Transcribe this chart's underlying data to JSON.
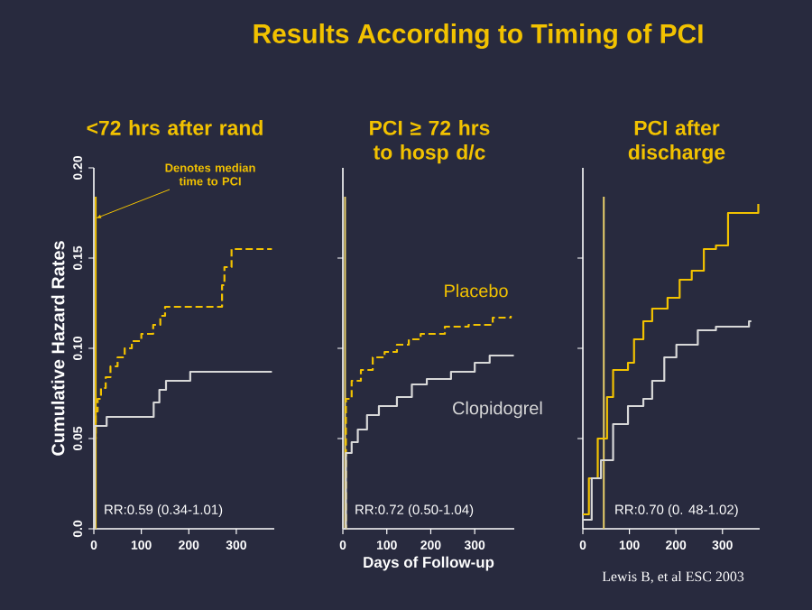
{
  "chart_data": [
    {
      "type": "step",
      "title": "<72 hrs after rand",
      "ylabel": "Cumulative Hazard Rates",
      "annotations": [
        "Results According to Timing of PCI",
        "RR:0.59 (0.34-1.01)"
      ],
      "xlim": [
        0,
        380
      ],
      "ylim": [
        0,
        0.2
      ],
      "xticks": [
        0,
        100,
        200,
        300
      ],
      "yticks": [
        {
          "value": 0,
          "label": "0.0"
        },
        0.05,
        {
          "value": 0.1,
          "label": "0.10"
        },
        0.15,
        {
          "value": 0.2,
          "label": "0.20"
        }
      ],
      "ref_lines": [
        {
          "axis": "x",
          "value": 4,
          "label": "Denotes median time to PCI",
          "color": "#f2c200"
        }
      ],
      "legend": false,
      "grid": false,
      "series": [
        {
          "color": "#f2c200",
          "line_style": "dashed",
          "x": [
            0,
            2,
            4,
            8,
            15,
            25,
            35,
            50,
            65,
            80,
            100,
            125,
            140,
            150,
            265,
            270,
            275,
            290,
            375
          ],
          "values": [
            0,
            0.05,
            0.065,
            0.072,
            0.078,
            0.084,
            0.09,
            0.095,
            0.1,
            0.104,
            0.108,
            0.113,
            0.118,
            0.123,
            0.123,
            0.135,
            0.145,
            0.155,
            0.155
          ]
        },
        {
          "color": "#d8d8d8",
          "line_style": "solid",
          "x": [
            0,
            2,
            27,
            126,
            138,
            152,
            203,
            375
          ],
          "values": [
            0,
            0.057,
            0.062,
            0.07,
            0.077,
            0.082,
            0.087,
            0.087
          ]
        }
      ]
    },
    {
      "type": "step",
      "title": "PCI ≥ 72 hrs to hosp d/c",
      "xlabel": "Days of Follow-up",
      "annotations": [
        "RR:0.72 (0.50-1.04)"
      ],
      "xlim": [
        0,
        390
      ],
      "ylim": [
        0,
        0.2
      ],
      "xticks": [
        0,
        100,
        200,
        300
      ],
      "yticks": [
        {
          "value": 0.05,
          "label": null
        },
        {
          "value": 0.1,
          "label": null
        },
        {
          "value": 0.15,
          "label": null
        }
      ],
      "tick_labels": "x",
      "ref_lines": [
        {
          "axis": "x",
          "value": 5,
          "color": "#e8cf6a"
        }
      ],
      "legend": false,
      "grid": false,
      "series": [
        {
          "name": "Placebo",
          "color": "#f2c200",
          "line_style": "dashed",
          "x": [
            0,
            7,
            20,
            41,
            68,
            95,
            123,
            150,
            177,
            232,
            286,
            341,
            382
          ],
          "values": [
            0,
            0.072,
            0.082,
            0.088,
            0.095,
            0.098,
            0.102,
            0.105,
            0.108,
            0.112,
            0.113,
            0.117,
            0.118
          ]
        },
        {
          "name": "Clopidogrel",
          "color": "#d8d8d8",
          "line_style": "solid",
          "x": [
            0,
            7,
            20,
            34,
            55,
            82,
            123,
            157,
            191,
            246,
            300,
            334,
            389
          ],
          "values": [
            0,
            0.042,
            0.048,
            0.055,
            0.063,
            0.068,
            0.073,
            0.08,
            0.083,
            0.087,
            0.092,
            0.096,
            0.096
          ]
        }
      ]
    },
    {
      "type": "step",
      "title": "PCI after discharge",
      "annotations": [
        "RR:0.70 (0. 48-1.02)",
        "Lewis B, et al ESC 2003"
      ],
      "xlim": [
        0,
        380
      ],
      "ylim": [
        0,
        0.2
      ],
      "xticks": [
        0,
        100,
        200,
        300
      ],
      "yticks": [
        {
          "value": 0.05,
          "label": null
        },
        {
          "value": 0.1,
          "label": null
        },
        {
          "value": 0.15,
          "label": null
        }
      ],
      "tick_labels": "x",
      "ref_lines": [
        {
          "axis": "x",
          "value": 45,
          "color": "#e8cf6a"
        }
      ],
      "legend": false,
      "grid": false,
      "series": [
        {
          "color": "#f2c200",
          "line_style": "solid",
          "x": [
            0,
            13,
            32,
            52,
            65,
            97,
            110,
            130,
            149,
            182,
            208,
            234,
            260,
            286,
            312,
            377
          ],
          "values": [
            0.008,
            0.028,
            0.05,
            0.073,
            0.088,
            0.092,
            0.105,
            0.115,
            0.122,
            0.128,
            0.138,
            0.143,
            0.155,
            0.157,
            0.175,
            0.18
          ]
        },
        {
          "color": "#d8d8d8",
          "line_style": "solid",
          "x": [
            0,
            19,
            39,
            65,
            97,
            130,
            149,
            175,
            201,
            247,
            286,
            357,
            362
          ],
          "values": [
            0.005,
            0.028,
            0.038,
            0.058,
            0.068,
            0.072,
            0.082,
            0.095,
            0.102,
            0.11,
            0.112,
            0.115,
            0.115
          ]
        }
      ]
    }
  ]
}
